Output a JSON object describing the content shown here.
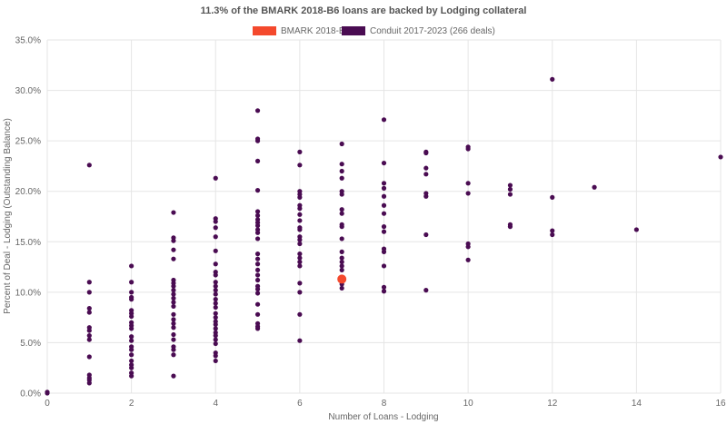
{
  "chart_data": {
    "type": "scatter",
    "title": "11.3% of the BMARK 2018-B6 loans are backed by Lodging collateral",
    "xlabel": "Number of Loans - Lodging",
    "ylabel": "Percent of Deal - Lodging (Outstanding Balance)",
    "xlim": [
      0,
      16
    ],
    "ylim": [
      0,
      35
    ],
    "x_ticks": [
      0,
      2,
      4,
      6,
      8,
      10,
      12,
      14,
      16
    ],
    "y_ticks": [
      0,
      5,
      10,
      15,
      20,
      25,
      30,
      35
    ],
    "y_tick_labels": [
      "0.0%",
      "5.0%",
      "10.0%",
      "15.0%",
      "20.0%",
      "25.0%",
      "30.0%",
      "35.0%"
    ],
    "grid": true,
    "legend": "top-center",
    "series": [
      {
        "name": "BMARK 2018-B6",
        "color": "#f4492d",
        "points": [
          [
            7,
            11.3
          ]
        ]
      },
      {
        "name": "Conduit 2017-2023 (266 deals)",
        "color": "#4a0c52",
        "points": [
          [
            0,
            0.0
          ],
          [
            0,
            0.1
          ],
          [
            1,
            22.6
          ],
          [
            1,
            11.0
          ],
          [
            1,
            10.0
          ],
          [
            1,
            8.4
          ],
          [
            1,
            8.0
          ],
          [
            1,
            6.5
          ],
          [
            1,
            6.2
          ],
          [
            1,
            5.7
          ],
          [
            1,
            5.3
          ],
          [
            1,
            3.6
          ],
          [
            1,
            1.8
          ],
          [
            1,
            1.5
          ],
          [
            1,
            1.3
          ],
          [
            1,
            1.0
          ],
          [
            2,
            12.6
          ],
          [
            2,
            11.0
          ],
          [
            2,
            10.0
          ],
          [
            2,
            9.5
          ],
          [
            2,
            9.3
          ],
          [
            2,
            8.2
          ],
          [
            2,
            7.9
          ],
          [
            2,
            7.6
          ],
          [
            2,
            7.0
          ],
          [
            2,
            6.7
          ],
          [
            2,
            6.4
          ],
          [
            2,
            5.6
          ],
          [
            2,
            5.2
          ],
          [
            2,
            4.6
          ],
          [
            2,
            4.3
          ],
          [
            2,
            3.8
          ],
          [
            2,
            3.2
          ],
          [
            2,
            2.8
          ],
          [
            2,
            2.5
          ],
          [
            2,
            2.0
          ],
          [
            2,
            1.7
          ],
          [
            3,
            17.9
          ],
          [
            3,
            15.4
          ],
          [
            3,
            15.1
          ],
          [
            3,
            14.2
          ],
          [
            3,
            13.3
          ],
          [
            3,
            11.2
          ],
          [
            3,
            10.9
          ],
          [
            3,
            10.6
          ],
          [
            3,
            10.2
          ],
          [
            3,
            9.8
          ],
          [
            3,
            9.4
          ],
          [
            3,
            9.0
          ],
          [
            3,
            8.6
          ],
          [
            3,
            7.8
          ],
          [
            3,
            7.3
          ],
          [
            3,
            6.9
          ],
          [
            3,
            6.5
          ],
          [
            3,
            5.8
          ],
          [
            3,
            5.3
          ],
          [
            3,
            4.6
          ],
          [
            3,
            4.3
          ],
          [
            3,
            3.8
          ],
          [
            3,
            1.7
          ],
          [
            4,
            21.3
          ],
          [
            4,
            17.3
          ],
          [
            4,
            17.0
          ],
          [
            4,
            16.4
          ],
          [
            4,
            15.5
          ],
          [
            4,
            14.1
          ],
          [
            4,
            12.8
          ],
          [
            4,
            12.0
          ],
          [
            4,
            11.7
          ],
          [
            4,
            11.0
          ],
          [
            4,
            10.6
          ],
          [
            4,
            10.2
          ],
          [
            4,
            9.8
          ],
          [
            4,
            9.3
          ],
          [
            4,
            8.9
          ],
          [
            4,
            8.5
          ],
          [
            4,
            7.9
          ],
          [
            4,
            7.5
          ],
          [
            4,
            7.1
          ],
          [
            4,
            6.8
          ],
          [
            4,
            6.4
          ],
          [
            4,
            6.0
          ],
          [
            4,
            5.7
          ],
          [
            4,
            5.3
          ],
          [
            4,
            4.9
          ],
          [
            4,
            4.0
          ],
          [
            4,
            3.7
          ],
          [
            4,
            3.2
          ],
          [
            5,
            28.0
          ],
          [
            5,
            25.2
          ],
          [
            5,
            25.0
          ],
          [
            5,
            23.0
          ],
          [
            5,
            20.1
          ],
          [
            5,
            18.0
          ],
          [
            5,
            17.6
          ],
          [
            5,
            17.2
          ],
          [
            5,
            16.9
          ],
          [
            5,
            16.6
          ],
          [
            5,
            16.2
          ],
          [
            5,
            15.9
          ],
          [
            5,
            15.3
          ],
          [
            5,
            13.8
          ],
          [
            5,
            13.3
          ],
          [
            5,
            12.8
          ],
          [
            5,
            12.2
          ],
          [
            5,
            11.7
          ],
          [
            5,
            11.2
          ],
          [
            5,
            10.6
          ],
          [
            5,
            10.3
          ],
          [
            5,
            9.9
          ],
          [
            5,
            8.8
          ],
          [
            5,
            7.8
          ],
          [
            5,
            6.9
          ],
          [
            5,
            6.6
          ],
          [
            5,
            6.4
          ],
          [
            6,
            23.9
          ],
          [
            6,
            22.6
          ],
          [
            6,
            20.0
          ],
          [
            6,
            19.7
          ],
          [
            6,
            19.4
          ],
          [
            6,
            18.6
          ],
          [
            6,
            18.3
          ],
          [
            6,
            17.7
          ],
          [
            6,
            17.1
          ],
          [
            6,
            16.4
          ],
          [
            6,
            16.2
          ],
          [
            6,
            15.5
          ],
          [
            6,
            15.2
          ],
          [
            6,
            14.8
          ],
          [
            6,
            13.8
          ],
          [
            6,
            13.4
          ],
          [
            6,
            13.0
          ],
          [
            6,
            12.6
          ],
          [
            6,
            10.9
          ],
          [
            6,
            10.0
          ],
          [
            6,
            7.8
          ],
          [
            6,
            5.2
          ],
          [
            7,
            24.7
          ],
          [
            7,
            22.7
          ],
          [
            7,
            22.0
          ],
          [
            7,
            21.3
          ],
          [
            7,
            20.0
          ],
          [
            7,
            19.7
          ],
          [
            7,
            18.2
          ],
          [
            7,
            17.8
          ],
          [
            7,
            16.7
          ],
          [
            7,
            16.5
          ],
          [
            7,
            15.3
          ],
          [
            7,
            14.0
          ],
          [
            7,
            13.4
          ],
          [
            7,
            13.0
          ],
          [
            7,
            12.6
          ],
          [
            7,
            12.2
          ],
          [
            7,
            10.8
          ],
          [
            7,
            10.4
          ],
          [
            8,
            27.1
          ],
          [
            8,
            22.8
          ],
          [
            8,
            20.8
          ],
          [
            8,
            20.3
          ],
          [
            8,
            19.5
          ],
          [
            8,
            18.6
          ],
          [
            8,
            17.8
          ],
          [
            8,
            16.5
          ],
          [
            8,
            16.0
          ],
          [
            8,
            14.3
          ],
          [
            8,
            14.0
          ],
          [
            8,
            12.6
          ],
          [
            8,
            10.5
          ],
          [
            8,
            10.1
          ],
          [
            9,
            23.9
          ],
          [
            9,
            23.8
          ],
          [
            9,
            22.3
          ],
          [
            9,
            21.7
          ],
          [
            9,
            19.8
          ],
          [
            9,
            19.5
          ],
          [
            9,
            15.7
          ],
          [
            9,
            10.2
          ],
          [
            10,
            24.4
          ],
          [
            10,
            24.2
          ],
          [
            10,
            20.8
          ],
          [
            10,
            19.8
          ],
          [
            10,
            14.8
          ],
          [
            10,
            14.5
          ],
          [
            10,
            13.2
          ],
          [
            11,
            20.6
          ],
          [
            11,
            20.2
          ],
          [
            11,
            19.7
          ],
          [
            11,
            16.7
          ],
          [
            11,
            16.5
          ],
          [
            12,
            31.1
          ],
          [
            12,
            19.4
          ],
          [
            12,
            16.1
          ],
          [
            12,
            15.7
          ],
          [
            13,
            20.4
          ],
          [
            14,
            16.2
          ],
          [
            16,
            23.4
          ]
        ]
      }
    ]
  }
}
